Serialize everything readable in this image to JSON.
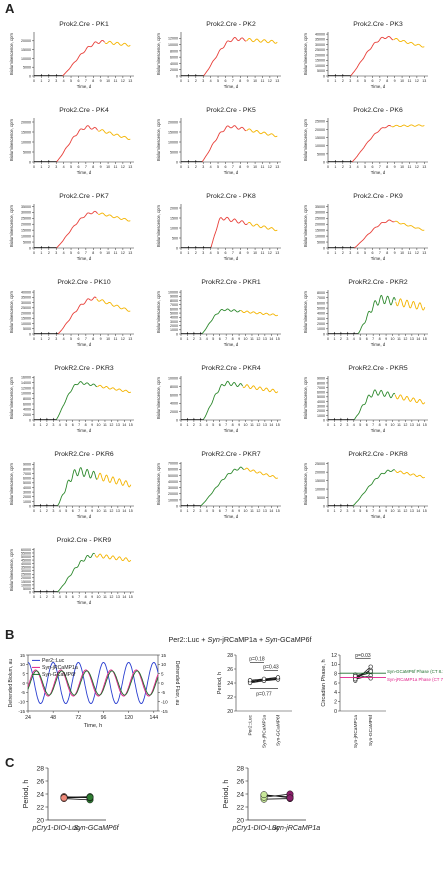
{
  "panels": {
    "A": {
      "letter": "A"
    },
    "B": {
      "letter": "B",
      "title_parts": [
        "Per2::Luc + ",
        "Syn",
        "-jRCaMP1a + ",
        "Syn",
        "-GCaMP6f"
      ]
    },
    "C": {
      "letter": "C"
    }
  },
  "colors": {
    "red": "#e8403a",
    "orange": "#f4b400",
    "green": "#2f8a2f",
    "black": "#111111",
    "blue": "#2a3fd0",
    "magenta": "#e0218a",
    "darkgreen": "#1f6e2c",
    "light_green": "#c8e89a",
    "salmon": "#f08a7a",
    "dark_green_dot": "#2e7d32",
    "purple": "#8a1f6a"
  },
  "chart_data": [
    {
      "type": "line",
      "title": "Prok2.Cre - PK1",
      "xlabel": "Time, d",
      "ylabel": "Bioluminescence, cpm",
      "yticks": [
        0,
        5000,
        10000,
        15000,
        20000
      ],
      "xticks": [
        0,
        1,
        2,
        3,
        4,
        5,
        6,
        7,
        8,
        9,
        10,
        11,
        12,
        13
      ],
      "xlim": [
        0,
        13.5
      ],
      "ylim": [
        0,
        25000
      ],
      "switch_day": 9.6,
      "induction_day": 3.8,
      "peak_day": 9.2,
      "peak": 19500,
      "end": 17500,
      "color_a": "red",
      "osc": 0.04
    },
    {
      "type": "line",
      "title": "Prok2.Cre - PK2",
      "xlabel": "Time, d",
      "ylabel": "Bioluminescence, cpm",
      "yticks": [
        0,
        2000,
        4000,
        6000,
        8000,
        10000,
        12000
      ],
      "xticks": [
        0,
        1,
        2,
        3,
        4,
        5,
        6,
        7,
        8,
        9,
        10,
        11,
        12,
        13
      ],
      "xlim": [
        0,
        13.5
      ],
      "ylim": [
        0,
        14000
      ],
      "switch_day": 8.8,
      "induction_day": 3.0,
      "peak_day": 7.4,
      "peak": 11800,
      "end": 10800,
      "color_a": "red",
      "osc": 0.04
    },
    {
      "type": "line",
      "title": "Prok2.Cre - PK3",
      "xlabel": "Time, d",
      "ylabel": "Bioluminescence, cpm",
      "yticks": [
        0,
        5000,
        10000,
        15000,
        20000,
        25000,
        30000,
        35000,
        40000
      ],
      "xticks": [
        0,
        1,
        2,
        3,
        4,
        5,
        6,
        7,
        8,
        9,
        10,
        11,
        12,
        13
      ],
      "xlim": [
        0,
        13.5
      ],
      "ylim": [
        0,
        42000
      ],
      "switch_day": 8.8,
      "induction_day": 3.0,
      "peak_day": 8.0,
      "peak": 37000,
      "end": 28000,
      "color_a": "red",
      "osc": 0.03
    },
    {
      "type": "line",
      "title": "Prok2.Cre - PK4",
      "xlabel": "Time, d",
      "ylabel": "Bioluminescence, cpm",
      "yticks": [
        0,
        5000,
        10000,
        15000,
        20000
      ],
      "xticks": [
        0,
        1,
        2,
        3,
        4,
        5,
        6,
        7,
        8,
        9,
        10,
        11,
        12,
        13
      ],
      "xlim": [
        0,
        13.5
      ],
      "ylim": [
        0,
        22000
      ],
      "switch_day": 8.6,
      "induction_day": 3.0,
      "peak_day": 7.4,
      "peak": 17500,
      "end": 11500,
      "color_a": "red",
      "osc": 0.04
    },
    {
      "type": "line",
      "title": "Prok2.Cre - PK5",
      "xlabel": "Time, d",
      "ylabel": "Bioluminescence, cpm",
      "yticks": [
        0,
        5000,
        10000,
        15000,
        20000
      ],
      "xticks": [
        0,
        1,
        2,
        3,
        4,
        5,
        6,
        7,
        8,
        9,
        10,
        11,
        12,
        13
      ],
      "xlim": [
        0,
        13.5
      ],
      "ylim": [
        0,
        22000
      ],
      "switch_day": 8.8,
      "induction_day": 2.8,
      "peak_day": 6.8,
      "peak": 17800,
      "end": 13000,
      "color_a": "red",
      "osc": 0.04
    },
    {
      "type": "line",
      "title": "Prok2.Cre - PK6",
      "xlabel": "Time, d",
      "ylabel": "Bioluminescence, cpm",
      "yticks": [
        0,
        5000,
        10000,
        15000,
        20000,
        25000
      ],
      "xticks": [
        0,
        1,
        2,
        3,
        4,
        5,
        6,
        7,
        8,
        9,
        10,
        11,
        12,
        13
      ],
      "xlim": [
        0,
        13.5
      ],
      "ylim": [
        0,
        27000
      ],
      "switch_day": 8.5,
      "induction_day": 3.2,
      "peak_day": 8.4,
      "peak": 22000,
      "end": 22500,
      "color_a": "red",
      "osc": 0.02
    },
    {
      "type": "line",
      "title": "Prok2.Cre - PK7",
      "xlabel": "Time, d",
      "ylabel": "Bioluminescence, cpm",
      "yticks": [
        0,
        5000,
        10000,
        15000,
        20000,
        25000,
        30000,
        35000
      ],
      "xticks": [
        0,
        1,
        2,
        3,
        4,
        5,
        6,
        7,
        8,
        9,
        10,
        11,
        12,
        13
      ],
      "xlim": [
        0,
        13.5
      ],
      "ylim": [
        0,
        37000
      ],
      "switch_day": 8.6,
      "induction_day": 3.0,
      "peak_day": 8.2,
      "peak": 30000,
      "end": 23000,
      "color_a": "red",
      "osc": 0.03
    },
    {
      "type": "line",
      "title": "Prok2.Cre - PK8",
      "xlabel": "Time, d",
      "ylabel": "Bioluminescence, cpm",
      "yticks": [
        0,
        500,
        1000,
        1500,
        2000
      ],
      "xticks": [
        0,
        1,
        2,
        3,
        4,
        5,
        6,
        7,
        8,
        9,
        10,
        11,
        12,
        13
      ],
      "xlim": [
        0,
        13.5
      ],
      "ylim": [
        0,
        2200
      ],
      "switch_day": 9.0,
      "induction_day": 4.0,
      "peak_day": 5.6,
      "peak": 1500,
      "end": 900,
      "color_a": "red",
      "osc": 0.06
    },
    {
      "type": "line",
      "title": "Prok2.Cre - PK9",
      "xlabel": "Time, d",
      "ylabel": "Bioluminescence, cpm",
      "yticks": [
        0,
        5000,
        10000,
        15000,
        20000,
        25000,
        30000,
        35000
      ],
      "xticks": [
        0,
        1,
        2,
        3,
        4,
        5,
        6,
        7,
        8,
        9,
        10,
        11,
        12,
        13
      ],
      "xlim": [
        0,
        13.5
      ],
      "ylim": [
        0,
        37000
      ],
      "switch_day": 9.0,
      "induction_day": 3.5,
      "peak_day": 8.6,
      "peak": 23000,
      "end": 15000,
      "color_a": "red",
      "osc": 0.03
    },
    {
      "type": "line",
      "title": "Prok2.Cre - PK10",
      "xlabel": "Time, d",
      "ylabel": "Bioluminescence, cpm",
      "yticks": [
        0,
        5000,
        10000,
        15000,
        20000,
        25000,
        30000,
        35000,
        40000
      ],
      "xticks": [
        0,
        1,
        2,
        3,
        4,
        5,
        6,
        7,
        8,
        9,
        10,
        11,
        12,
        13
      ],
      "xlim": [
        0,
        13.5
      ],
      "ylim": [
        0,
        42000
      ],
      "switch_day": 8.4,
      "induction_day": 3.2,
      "peak_day": 8.2,
      "peak": 34000,
      "end": 22000,
      "color_a": "red",
      "osc": 0.04
    },
    {
      "type": "line",
      "title": "ProkR2.Cre - PKR1",
      "xlabel": "Time, d",
      "ylabel": "Bioluminescence, cpm",
      "yticks": [
        0,
        1000,
        2000,
        3000,
        4000,
        5000,
        6000,
        7000,
        8000,
        9000,
        10000
      ],
      "xticks": [
        0,
        1,
        2,
        3,
        4,
        5,
        6,
        7,
        8,
        9,
        10,
        11,
        12,
        13,
        14,
        15
      ],
      "xlim": [
        0,
        15.5
      ],
      "ylim": [
        0,
        10500
      ],
      "switch_day": 9.2,
      "induction_day": 3.2,
      "peak_day": 6.8,
      "peak": 5800,
      "end": 4500,
      "color_a": "green",
      "osc": 0.04
    },
    {
      "type": "line",
      "title": "ProkR2.Cre - PKR2",
      "xlabel": "Time, d",
      "ylabel": "Bioluminescence, cpm",
      "yticks": [
        0,
        1000,
        2000,
        3000,
        4000,
        5000,
        6000,
        7000,
        8000
      ],
      "xticks": [
        0,
        1,
        2,
        3,
        4,
        5,
        6,
        7,
        8,
        9,
        10,
        11,
        12,
        13,
        14,
        15
      ],
      "xlim": [
        0,
        15.5
      ],
      "ylim": [
        0,
        8500
      ],
      "switch_day": 10.5,
      "induction_day": 4.6,
      "peak_day": 8.5,
      "peak": 6700,
      "end": 5200,
      "color_a": "green",
      "osc": 0.12
    },
    {
      "type": "line",
      "title": "ProkR2.Cre - PKR3",
      "xlabel": "Time, d",
      "ylabel": "Bioluminescence, cpm",
      "yticks": [
        0,
        2000,
        4000,
        6000,
        8000,
        10000,
        12000,
        14000,
        16000
      ],
      "xticks": [
        0,
        1,
        2,
        3,
        4,
        5,
        6,
        7,
        8,
        9,
        10,
        11,
        12,
        13,
        14,
        15
      ],
      "xlim": [
        0,
        15.5
      ],
      "ylim": [
        0,
        16500
      ],
      "switch_day": 9.8,
      "induction_day": 3.4,
      "peak_day": 7.2,
      "peak": 14000,
      "end": 10500,
      "color_a": "green",
      "osc": 0.03
    },
    {
      "type": "line",
      "title": "ProkR2.Cre - PKR4",
      "xlabel": "Time, d",
      "ylabel": "Bioluminescence, cpm",
      "yticks": [
        0,
        2000,
        4000,
        6000,
        8000,
        10000
      ],
      "xticks": [
        0,
        1,
        2,
        3,
        4,
        5,
        6,
        7,
        8,
        9,
        10,
        11,
        12,
        13,
        14,
        15
      ],
      "xlim": [
        0,
        15.5
      ],
      "ylim": [
        0,
        10500
      ],
      "switch_day": 9.6,
      "induction_day": 3.4,
      "peak_day": 7.2,
      "peak": 8800,
      "end": 6800,
      "color_a": "green",
      "osc": 0.05
    },
    {
      "type": "line",
      "title": "ProkR2.Cre - PKR5",
      "xlabel": "Time, d",
      "ylabel": "Bioluminescence, cpm",
      "yticks": [
        0,
        1000,
        2000,
        3000,
        4000,
        5000,
        6000,
        7000,
        8000,
        9000
      ],
      "xticks": [
        0,
        1,
        2,
        3,
        4,
        5,
        6,
        7,
        8,
        9,
        10,
        11,
        12,
        13,
        14,
        15
      ],
      "xlim": [
        0,
        15.5
      ],
      "ylim": [
        0,
        9500
      ],
      "switch_day": 10.4,
      "induction_day": 4.0,
      "peak_day": 7.6,
      "peak": 6000,
      "end": 3800,
      "color_a": "green",
      "osc": 0.1
    },
    {
      "type": "line",
      "title": "ProkR2.Cre - PKR6",
      "xlabel": "Time, d",
      "ylabel": "Bioluminescence, cpm",
      "yticks": [
        0,
        1000,
        2000,
        3000,
        4000,
        5000,
        6000,
        7000,
        8000,
        9000
      ],
      "xticks": [
        0,
        1,
        2,
        3,
        4,
        5,
        6,
        7,
        8,
        9,
        10,
        11,
        12,
        13,
        14,
        15
      ],
      "xlim": [
        0,
        15.5
      ],
      "ylim": [
        0,
        9500
      ],
      "switch_day": 9.8,
      "induction_day": 3.6,
      "peak_day": 7.0,
      "peak": 7500,
      "end": 4600,
      "color_a": "green",
      "osc": 0.12
    },
    {
      "type": "line",
      "title": "ProkR2.Cre - PKR7",
      "xlabel": "Time, d",
      "ylabel": "Bioluminescence, cpm",
      "yticks": [
        0,
        10000,
        20000,
        30000,
        40000,
        50000,
        60000,
        70000
      ],
      "xticks": [
        0,
        1,
        2,
        3,
        4,
        5,
        6,
        7,
        8,
        9,
        10,
        11,
        12,
        13,
        14,
        15
      ],
      "xlim": [
        0,
        15.5
      ],
      "ylim": [
        0,
        72000
      ],
      "switch_day": 9.8,
      "induction_day": 3.0,
      "peak_day": 9.6,
      "peak": 62000,
      "end": 46000,
      "color_a": "green",
      "osc": 0.03
    },
    {
      "type": "line",
      "title": "ProkR2.Cre - PKR8",
      "xlabel": "Time, d",
      "ylabel": "Bioluminescence, cpm",
      "yticks": [
        0,
        5000,
        10000,
        15000,
        20000,
        25000
      ],
      "xticks": [
        0,
        1,
        2,
        3,
        4,
        5,
        6,
        7,
        8,
        9,
        10,
        11,
        12,
        13,
        14,
        15
      ],
      "xlim": [
        0,
        15.5
      ],
      "ylim": [
        0,
        26000
      ],
      "switch_day": 10.4,
      "induction_day": 3.8,
      "peak_day": 10.0,
      "peak": 21000,
      "end": 17000,
      "color_a": "green",
      "osc": 0.03
    },
    {
      "type": "line",
      "title": "Prok2.Cre - PKR9",
      "xlabel": "Time, d",
      "ylabel": "Bioluminescence, cpm",
      "yticks": [
        0,
        5000,
        10000,
        15000,
        20000,
        25000,
        30000,
        35000,
        40000,
        45000,
        50000,
        55000,
        60000
      ],
      "xticks": [
        0,
        1,
        2,
        3,
        4,
        5,
        6,
        7,
        8,
        9,
        10,
        11,
        12,
        13,
        14,
        15
      ],
      "xlim": [
        0,
        15.5
      ],
      "ylim": [
        0,
        62000
      ],
      "switch_day": 9.4,
      "induction_day": 3.6,
      "peak_day": 9.4,
      "peak": 52000,
      "end": 45000,
      "color_a": "green",
      "osc": 0.05
    },
    {
      "type": "line",
      "title": "",
      "xlabel": "Time, h",
      "ylabel": "Detrended Biolum, au",
      "ylabel_right": "Detrended Fluor, au",
      "xticks": [
        24,
        48,
        72,
        96,
        120,
        144
      ],
      "xlim": [
        24,
        148
      ],
      "yticks": [
        -15,
        -10,
        -5,
        0,
        5,
        10,
        15
      ],
      "ylim": [
        -15,
        15
      ],
      "yticks_right": [
        -15,
        -10,
        -5,
        0,
        5,
        10,
        15
      ],
      "series": [
        {
          "name": "Per2::Luc",
          "color": "blue",
          "amp": 11,
          "phase_h": 0
        },
        {
          "name": "Syn-jRCaMP1a",
          "color": "magenta",
          "amp": 7,
          "phase_h": 7.2
        },
        {
          "name": "Syn-GCaMP6f",
          "color": "darkgreen",
          "amp": 6.5,
          "phase_h": 8.1
        }
      ]
    },
    {
      "type": "scatter",
      "ylabel": "Period, h",
      "ylim": [
        20,
        28
      ],
      "yticks": [
        20,
        22,
        24,
        26,
        28
      ],
      "categories": [
        "Per2::Luc",
        "Syn-jRCaMP1a",
        "Syn-GCaMP6f"
      ],
      "values": [
        [
          24.2,
          24.4,
          24.6
        ],
        [
          24.3,
          24.5,
          24.7
        ],
        [
          24.1,
          24.4,
          24.6
        ],
        [
          24.0,
          24.3,
          24.5
        ],
        [
          24.4,
          24.6,
          24.8
        ]
      ],
      "annotations": [
        "p=0.18",
        "p=0.43",
        "p=0.77"
      ]
    },
    {
      "type": "scatter",
      "ylabel": "Circadian Phase, h",
      "ylim": [
        0,
        12
      ],
      "yticks": [
        0,
        2,
        4,
        6,
        8,
        10,
        12
      ],
      "categories": [
        "Syn-jRCaMP1a",
        "Syn-GCaMP6f"
      ],
      "values": [
        [
          6.5,
          9.5
        ],
        [
          7.0,
          8.8
        ],
        [
          7.3,
          8.2
        ],
        [
          6.8,
          7.6
        ],
        [
          7.8,
          7.0
        ],
        [
          7.5,
          8.5
        ]
      ],
      "annotations": [
        "p=0.03"
      ],
      "reference_lines": [
        {
          "label": "Syn-GCaMP6f Phase  (CT 8.1)",
          "value": 8.1,
          "color": "darkgreen"
        },
        {
          "label": "Syn-jRCaMP1a Phase  (CT 7.2)",
          "value": 7.2,
          "color": "magenta"
        }
      ]
    },
    {
      "type": "scatter",
      "ylabel": "Period, h",
      "ylim": [
        20,
        28
      ],
      "yticks": [
        20,
        22,
        24,
        26,
        28
      ],
      "categories": [
        "pCry1-DIO-Luc",
        "Syn-GCaMP6f"
      ],
      "values": [
        [
          23.3,
          23.1
        ],
        [
          23.6,
          23.4
        ],
        [
          23.5,
          23.6
        ],
        [
          23.4,
          23.5
        ]
      ]
    },
    {
      "type": "scatter",
      "ylabel": "Period, h",
      "ylim": [
        20,
        28
      ],
      "yticks": [
        20,
        22,
        24,
        26,
        28
      ],
      "categories": [
        "pCry1-DIO-Luc",
        "Syn-jRCaMP1a"
      ],
      "values": [
        [
          23.2,
          23.3
        ],
        [
          23.8,
          23.6
        ],
        [
          23.5,
          24.0
        ],
        [
          23.9,
          23.4
        ]
      ]
    }
  ]
}
